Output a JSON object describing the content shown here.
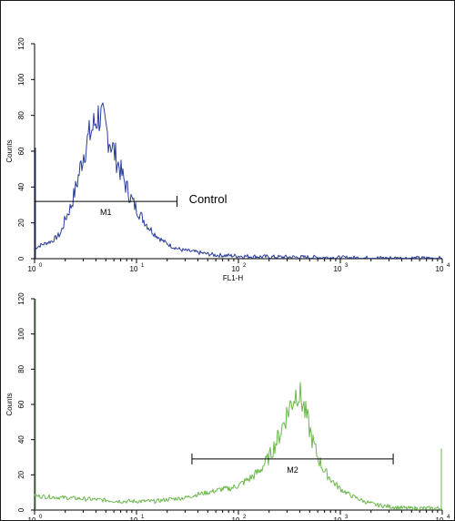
{
  "chart_data": [
    {
      "type": "line",
      "plot_id": "top",
      "xscale": "log",
      "xlim": [
        1,
        10000
      ],
      "ylim": [
        0,
        120
      ],
      "xlabel": "FL1-H",
      "ylabel": "Counts",
      "yticks": [
        "0",
        "20",
        "40",
        "60",
        "80",
        "100",
        "120"
      ],
      "xticks": [
        {
          "base": "10",
          "exp": "0"
        },
        {
          "base": "10",
          "exp": "1"
        },
        {
          "base": "10",
          "exp": "2"
        },
        {
          "base": "10",
          "exp": "3"
        },
        {
          "base": "10",
          "exp": "4"
        }
      ],
      "color": "#2a3c9c",
      "series": [
        {
          "x": [
            1,
            1.2,
            1.5,
            1.8,
            2.0,
            2.3,
            2.6,
            3.0,
            3.4,
            3.8,
            4.2,
            4.6,
            5.0,
            5.5,
            6.0,
            6.7,
            7.5,
            8.5,
            9.5,
            11,
            13,
            15,
            18,
            22,
            27,
            35,
            45,
            60,
            100,
            200,
            500,
            1000,
            3000,
            10000
          ],
          "y": [
            6,
            8,
            10,
            14,
            22,
            30,
            42,
            58,
            68,
            74,
            80,
            78,
            72,
            66,
            60,
            52,
            44,
            36,
            30,
            24,
            18,
            14,
            10,
            7,
            5,
            4,
            3,
            2,
            1.5,
            1,
            0.8,
            0.5,
            0.3,
            0.2
          ]
        }
      ],
      "marker": {
        "label": "M1",
        "range": [
          1,
          25
        ],
        "y": 32
      },
      "annotation": "Control"
    },
    {
      "type": "line",
      "plot_id": "bottom",
      "xscale": "log",
      "xlim": [
        1,
        10000
      ],
      "ylim": [
        0,
        120
      ],
      "xlabel": "",
      "ylabel": "Counts",
      "yticks": [
        "0",
        "20",
        "40",
        "60",
        "80",
        "100",
        "120"
      ],
      "xticks": [
        {
          "base": "10",
          "exp": "0"
        },
        {
          "base": "10",
          "exp": "1"
        },
        {
          "base": "10",
          "exp": "2"
        },
        {
          "base": "10",
          "exp": "3"
        },
        {
          "base": "10",
          "exp": "4"
        }
      ],
      "color": "#6ab84a",
      "series": [
        {
          "x": [
            1,
            2,
            4,
            7,
            10,
            15,
            20,
            30,
            40,
            50,
            60,
            70,
            80,
            90,
            100,
            130,
            160,
            200,
            250,
            300,
            350,
            380,
            420,
            470,
            530,
            600,
            700,
            850,
            1000,
            1300,
            1700,
            2200,
            3000,
            4500,
            7000,
            10000
          ],
          "y": [
            8,
            7,
            6,
            5,
            5,
            5,
            6,
            7,
            9,
            10,
            11,
            12,
            12,
            13,
            14,
            18,
            22,
            30,
            42,
            55,
            64,
            68,
            62,
            52,
            40,
            30,
            22,
            16,
            12,
            8,
            5,
            3,
            2,
            1,
            1,
            1
          ]
        }
      ],
      "marker": {
        "label": "M2",
        "range": [
          35,
          3300
        ],
        "y": 29
      }
    }
  ]
}
